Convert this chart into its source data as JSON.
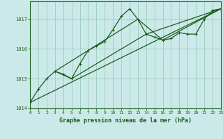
{
  "title": "Graphe pression niveau de la mer (hPa)",
  "bg_color": "#cce9e9",
  "grid_color": "#99ccbb",
  "line_color": "#1a5c1a",
  "x_min": 0,
  "x_max": 23,
  "y_min": 1014,
  "y_max": 1017.6,
  "yticks": [
    1014,
    1015,
    1016,
    1017
  ],
  "xticks": [
    0,
    1,
    2,
    3,
    4,
    5,
    6,
    7,
    8,
    9,
    10,
    11,
    12,
    13,
    14,
    15,
    16,
    17,
    18,
    19,
    20,
    21,
    22,
    23
  ],
  "series1": [
    [
      0,
      1014.2
    ],
    [
      1,
      1014.65
    ],
    [
      2,
      1015.0
    ],
    [
      3,
      1015.25
    ],
    [
      4,
      1015.15
    ],
    [
      5,
      1015.0
    ],
    [
      6,
      1015.5
    ],
    [
      7,
      1015.95
    ],
    [
      8,
      1016.1
    ],
    [
      9,
      1016.25
    ],
    [
      10,
      1016.65
    ],
    [
      11,
      1017.1
    ],
    [
      12,
      1017.35
    ],
    [
      13,
      1017.0
    ],
    [
      14,
      1016.5
    ],
    [
      15,
      1016.4
    ],
    [
      16,
      1016.3
    ],
    [
      17,
      1016.35
    ],
    [
      18,
      1016.55
    ],
    [
      19,
      1016.5
    ],
    [
      20,
      1016.5
    ],
    [
      21,
      1017.0
    ],
    [
      22,
      1017.3
    ],
    [
      23,
      1017.35
    ]
  ],
  "series2": [
    [
      0,
      1014.2
    ],
    [
      23,
      1017.35
    ]
  ],
  "series3": [
    [
      3,
      1015.25
    ],
    [
      5,
      1015.0
    ],
    [
      14,
      1016.5
    ],
    [
      23,
      1017.35
    ]
  ],
  "series4": [
    [
      3,
      1015.25
    ],
    [
      13,
      1017.0
    ],
    [
      16,
      1016.3
    ],
    [
      23,
      1017.35
    ]
  ]
}
